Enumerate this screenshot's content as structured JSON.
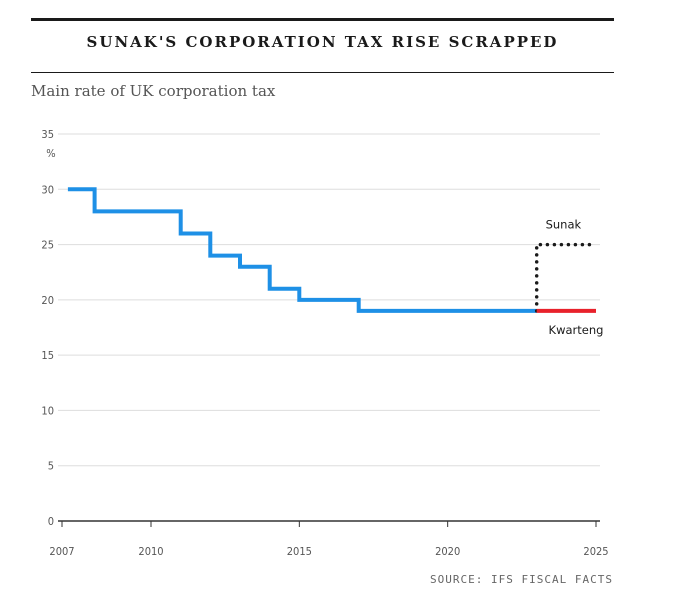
{
  "header": {
    "title": "SUNAK'S CORPORATION TAX RISE SCRAPPED",
    "subtitle": "Main rate of UK corporation tax",
    "source": "SOURCE: IFS FISCAL FACTS"
  },
  "chart_data": {
    "type": "line",
    "title": "SUNAK'S CORPORATION TAX RISE SCRAPPED",
    "subtitle": "Main rate of UK corporation tax",
    "unit": "%",
    "step": true,
    "xlim": [
      2007,
      2025
    ],
    "ylim": [
      0,
      35
    ],
    "grid": true,
    "x_ticks": [
      "2007",
      "2010",
      "2015",
      "2020",
      "2025"
    ],
    "y_ticks": [
      "0",
      "5",
      "10",
      "15",
      "20",
      "25",
      "30",
      "35"
    ],
    "series": [
      {
        "name": "",
        "color": "#1e90e6",
        "style": "solid",
        "points": [
          [
            2007.2,
            30
          ],
          [
            2008.1,
            28
          ],
          [
            2011.0,
            26
          ],
          [
            2012.0,
            24
          ],
          [
            2013.0,
            23
          ],
          [
            2014.0,
            21
          ],
          [
            2015.0,
            20
          ],
          [
            2017.0,
            19
          ],
          [
            2023.0,
            19
          ]
        ]
      },
      {
        "name": "Sunak",
        "color": "#1a1a1a",
        "style": "dotted",
        "points": [
          [
            2023.0,
            19
          ],
          [
            2023.0,
            25
          ],
          [
            2025.0,
            25
          ]
        ]
      },
      {
        "name": "Kwarteng",
        "color": "#e8212b",
        "style": "solid",
        "points": [
          [
            2023.0,
            19
          ],
          [
            2025.0,
            19
          ]
        ]
      }
    ]
  }
}
